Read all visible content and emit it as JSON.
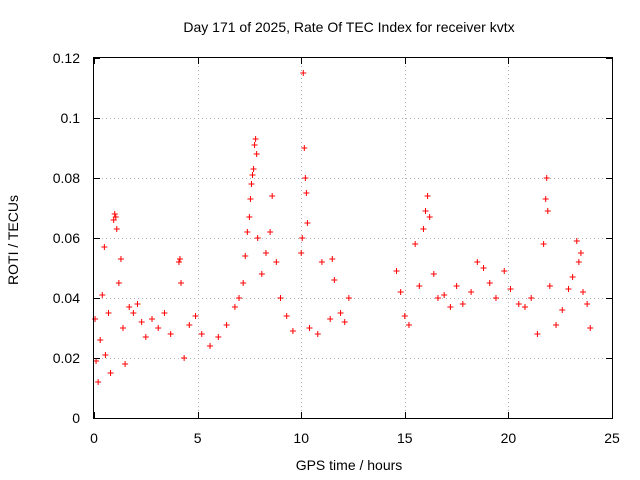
{
  "chart_data": {
    "type": "scatter",
    "title": "Day 171 of 2025, Rate Of TEC Index for receiver kvtx",
    "xlabel": "GPS time / hours",
    "ylabel": "ROTI / TECUs",
    "xlim": [
      0,
      25
    ],
    "ylim": [
      0,
      0.12
    ],
    "x_ticks": [
      0,
      5,
      10,
      15,
      20,
      25
    ],
    "x_tick_labels": [
      "0",
      "5",
      "10",
      "15",
      "20",
      "25"
    ],
    "y_ticks": [
      0,
      0.02,
      0.04,
      0.06,
      0.08,
      0.1,
      0.12
    ],
    "y_tick_labels": [
      "0",
      "0.02",
      "0.04",
      "0.06",
      "0.08",
      "0.1",
      "0.12"
    ],
    "grid": true,
    "legend": "none",
    "marker": "plus",
    "color": "#ff0000",
    "series": [
      {
        "points": [
          [
            0.05,
            0.033
          ],
          [
            0.1,
            0.019
          ],
          [
            0.2,
            0.012
          ],
          [
            0.3,
            0.026
          ],
          [
            0.4,
            0.041
          ],
          [
            0.5,
            0.057
          ],
          [
            0.55,
            0.021
          ],
          [
            0.7,
            0.035
          ],
          [
            0.8,
            0.015
          ],
          [
            0.95,
            0.066
          ],
          [
            1.0,
            0.068
          ],
          [
            1.05,
            0.067
          ],
          [
            1.1,
            0.063
          ],
          [
            1.2,
            0.045
          ],
          [
            1.3,
            0.053
          ],
          [
            1.4,
            0.03
          ],
          [
            1.5,
            0.018
          ],
          [
            1.7,
            0.037
          ],
          [
            1.9,
            0.035
          ],
          [
            2.1,
            0.038
          ],
          [
            2.3,
            0.032
          ],
          [
            2.5,
            0.027
          ],
          [
            2.8,
            0.033
          ],
          [
            3.1,
            0.03
          ],
          [
            3.4,
            0.035
          ],
          [
            3.7,
            0.028
          ],
          [
            4.1,
            0.052
          ],
          [
            4.15,
            0.053
          ],
          [
            4.2,
            0.045
          ],
          [
            4.35,
            0.02
          ],
          [
            4.6,
            0.031
          ],
          [
            4.9,
            0.034
          ],
          [
            5.2,
            0.028
          ],
          [
            5.6,
            0.024
          ],
          [
            6.0,
            0.027
          ],
          [
            6.4,
            0.031
          ],
          [
            6.8,
            0.037
          ],
          [
            7.0,
            0.04
          ],
          [
            7.2,
            0.045
          ],
          [
            7.3,
            0.054
          ],
          [
            7.4,
            0.062
          ],
          [
            7.5,
            0.067
          ],
          [
            7.55,
            0.073
          ],
          [
            7.6,
            0.078
          ],
          [
            7.65,
            0.081
          ],
          [
            7.7,
            0.083
          ],
          [
            7.75,
            0.091
          ],
          [
            7.8,
            0.093
          ],
          [
            7.85,
            0.088
          ],
          [
            7.9,
            0.06
          ],
          [
            8.1,
            0.048
          ],
          [
            8.3,
            0.055
          ],
          [
            8.5,
            0.062
          ],
          [
            8.6,
            0.074
          ],
          [
            8.8,
            0.052
          ],
          [
            9.0,
            0.04
          ],
          [
            9.3,
            0.034
          ],
          [
            9.6,
            0.029
          ],
          [
            10.0,
            0.055
          ],
          [
            10.05,
            0.06
          ],
          [
            10.1,
            0.115
          ],
          [
            10.15,
            0.09
          ],
          [
            10.2,
            0.08
          ],
          [
            10.25,
            0.075
          ],
          [
            10.3,
            0.065
          ],
          [
            10.4,
            0.03
          ],
          [
            10.8,
            0.028
          ],
          [
            11.0,
            0.052
          ],
          [
            11.4,
            0.033
          ],
          [
            11.5,
            0.053
          ],
          [
            11.6,
            0.046
          ],
          [
            11.9,
            0.035
          ],
          [
            12.1,
            0.032
          ],
          [
            12.3,
            0.04
          ],
          [
            14.6,
            0.049
          ],
          [
            14.8,
            0.042
          ],
          [
            15.0,
            0.034
          ],
          [
            15.2,
            0.031
          ],
          [
            15.5,
            0.058
          ],
          [
            15.7,
            0.044
          ],
          [
            15.9,
            0.063
          ],
          [
            16.0,
            0.069
          ],
          [
            16.1,
            0.074
          ],
          [
            16.2,
            0.067
          ],
          [
            16.4,
            0.048
          ],
          [
            16.6,
            0.04
          ],
          [
            16.9,
            0.041
          ],
          [
            17.2,
            0.037
          ],
          [
            17.5,
            0.044
          ],
          [
            17.8,
            0.038
          ],
          [
            18.2,
            0.042
          ],
          [
            18.5,
            0.052
          ],
          [
            18.8,
            0.05
          ],
          [
            19.1,
            0.045
          ],
          [
            19.4,
            0.04
          ],
          [
            19.8,
            0.049
          ],
          [
            20.1,
            0.043
          ],
          [
            20.5,
            0.038
          ],
          [
            20.8,
            0.037
          ],
          [
            21.1,
            0.04
          ],
          [
            21.4,
            0.028
          ],
          [
            21.7,
            0.058
          ],
          [
            21.8,
            0.073
          ],
          [
            21.85,
            0.08
          ],
          [
            21.9,
            0.069
          ],
          [
            22.0,
            0.044
          ],
          [
            22.3,
            0.031
          ],
          [
            22.6,
            0.036
          ],
          [
            22.9,
            0.043
          ],
          [
            23.1,
            0.047
          ],
          [
            23.3,
            0.059
          ],
          [
            23.4,
            0.052
          ],
          [
            23.5,
            0.055
          ],
          [
            23.6,
            0.042
          ],
          [
            23.8,
            0.038
          ],
          [
            23.95,
            0.03
          ]
        ]
      }
    ]
  }
}
